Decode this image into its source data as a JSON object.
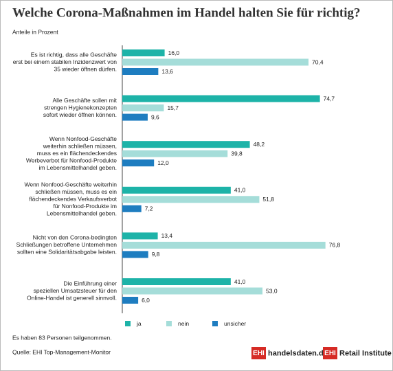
{
  "chart_data": {
    "type": "bar",
    "orientation": "horizontal",
    "title": "Welche Corona-Maßnahmen im Handel halten Sie für richtig?",
    "subtitle": "Anteile in Prozent",
    "categories": [
      [
        "Es ist richtig, dass alle Geschäfte",
        "erst bei einem stabilen Inzidenzwert von",
        "35 wieder öffnen dürfen."
      ],
      [
        "Alle Geschäfte sollen mit",
        "strengen Hygienekonzepten",
        "sofort wieder öffnen können."
      ],
      [
        "Wenn Nonfood-Geschäfte",
        "weiterhin schließen müssen,",
        "muss es ein flächendeckendes",
        "Werbeverbot für Nonfood-Produkte",
        "im Lebensmittelhandel geben."
      ],
      [
        "Wenn Nonfood-Geschäfte weiterhin",
        "schließen müssen, muss es ein",
        "flächendeckendes Verkaufsverbot",
        "für Nonfood-Produkte im",
        "Lebensmittelhandel geben."
      ],
      [
        "Nicht von den Corona-bedingten",
        "Schließungen betroffene Unternehmen",
        "sollten eine Solidaritätsabgabe leisten."
      ],
      [
        "Die Einführung einer",
        "speziellen Umsatzsteuer für den",
        "Online-Handel ist generell sinnvoll."
      ]
    ],
    "series": [
      {
        "name": "ja",
        "color": "#1db3a8",
        "values": [
          16.0,
          74.7,
          48.2,
          41.0,
          13.4,
          41.0
        ],
        "value_labels": [
          "16,0",
          "74,7",
          "48,2",
          "41,0",
          "13,4",
          "41,0"
        ]
      },
      {
        "name": "nein",
        "color": "#a5ddd9",
        "values": [
          70.4,
          15.7,
          39.8,
          51.8,
          76.8,
          53.0
        ],
        "value_labels": [
          "70,4",
          "15,7",
          "39,8",
          "51,8",
          "76,8",
          "53,0"
        ]
      },
      {
        "name": "unsicher",
        "color": "#1e7dc0",
        "values": [
          13.6,
          9.6,
          12.0,
          7.2,
          9.8,
          6.0
        ],
        "value_labels": [
          "13,6",
          "9,6",
          "12,0",
          "7,2",
          "9,8",
          "6,0"
        ]
      }
    ],
    "xlim": [
      0,
      100
    ],
    "note": "Es haben 83 Personen teilgenommen.",
    "source": "Quelle: EHI Top-Management-Monitor",
    "logos": [
      {
        "badge": "EHI",
        "text": "handelsdaten.de"
      },
      {
        "badge": "EHI",
        "text": "Retail Institute"
      }
    ]
  }
}
